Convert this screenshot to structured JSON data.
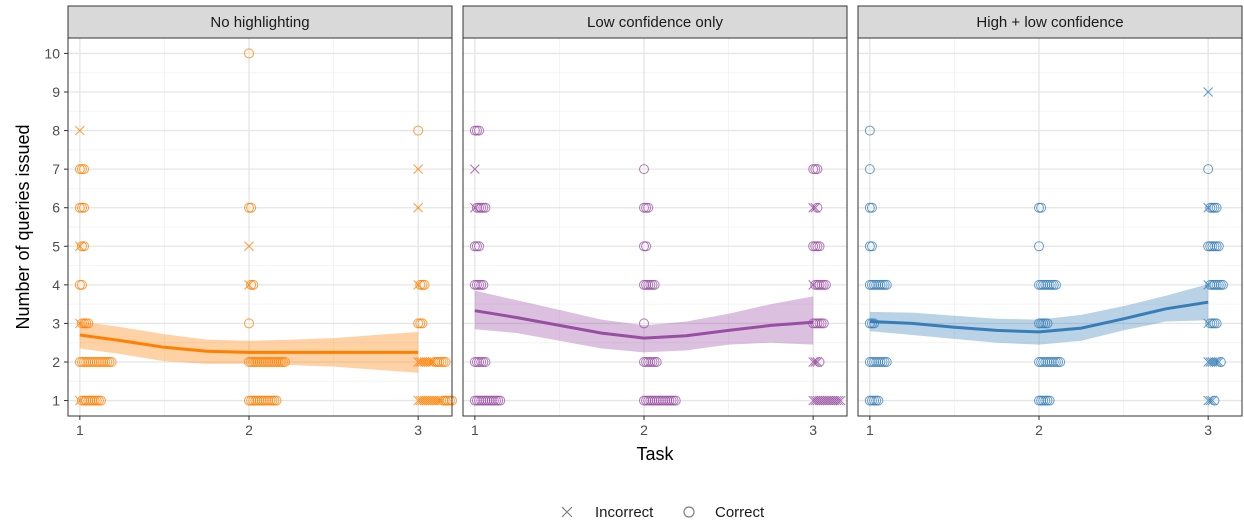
{
  "chart_data": {
    "type": "scatter",
    "xlabel": "Task",
    "ylabel": "Number of queries issued",
    "x_ticks": [
      1,
      2,
      3
    ],
    "y_ticks": [
      1,
      2,
      3,
      4,
      5,
      6,
      7,
      8,
      9,
      10
    ],
    "xlim": [
      0.93,
      3.2
    ],
    "ylim": [
      0.6,
      10.4
    ],
    "grid": true,
    "legend_placement": "bottom",
    "legend": [
      {
        "label": "Incorrect",
        "shape": "cross"
      },
      {
        "label": "Correct",
        "shape": "circle"
      }
    ],
    "panels": [
      {
        "title": "No highlighting",
        "color": "#ff7f00",
        "smooth": {
          "x": [
            1,
            1.25,
            1.5,
            1.75,
            2,
            2.25,
            2.5,
            2.75,
            3
          ],
          "y": [
            2.7,
            2.55,
            2.38,
            2.28,
            2.25,
            2.25,
            2.25,
            2.25,
            2.25
          ],
          "lower": [
            2.35,
            2.2,
            2.02,
            1.95,
            1.95,
            1.92,
            1.88,
            1.8,
            1.72
          ],
          "upper": [
            3.05,
            2.9,
            2.72,
            2.58,
            2.55,
            2.58,
            2.62,
            2.7,
            2.78
          ]
        },
        "groups": [
          {
            "task": 1,
            "y": 1,
            "correct": 10,
            "incorrect": 1
          },
          {
            "task": 1,
            "y": 2,
            "correct": 16,
            "incorrect": 0
          },
          {
            "task": 1,
            "y": 3,
            "correct": 4,
            "incorrect": 1
          },
          {
            "task": 1,
            "y": 4,
            "correct": 2,
            "incorrect": 0
          },
          {
            "task": 1,
            "y": 5,
            "correct": 2,
            "incorrect": 1
          },
          {
            "task": 1,
            "y": 6,
            "correct": 3,
            "incorrect": 0
          },
          {
            "task": 1,
            "y": 7,
            "correct": 3,
            "incorrect": 0
          },
          {
            "task": 1,
            "y": 8,
            "correct": 0,
            "incorrect": 1
          },
          {
            "task": 2,
            "y": 1,
            "correct": 14,
            "incorrect": 0
          },
          {
            "task": 2,
            "y": 2,
            "correct": 18,
            "incorrect": 0
          },
          {
            "task": 2,
            "y": 3,
            "correct": 1,
            "incorrect": 0
          },
          {
            "task": 2,
            "y": 4,
            "correct": 2,
            "incorrect": 1
          },
          {
            "task": 2,
            "y": 5,
            "correct": 0,
            "incorrect": 1
          },
          {
            "task": 2,
            "y": 6,
            "correct": 2,
            "incorrect": 0
          },
          {
            "task": 2,
            "y": 10,
            "correct": 1,
            "incorrect": 0
          },
          {
            "task": 3,
            "y": 1,
            "correct": 5,
            "incorrect": 12
          },
          {
            "task": 3,
            "y": 2,
            "correct": 6,
            "incorrect": 8
          },
          {
            "task": 3,
            "y": 3,
            "correct": 3,
            "incorrect": 0
          },
          {
            "task": 3,
            "y": 4,
            "correct": 3,
            "incorrect": 1
          },
          {
            "task": 3,
            "y": 6,
            "correct": 0,
            "incorrect": 1
          },
          {
            "task": 3,
            "y": 7,
            "correct": 0,
            "incorrect": 1
          },
          {
            "task": 3,
            "y": 8,
            "correct": 1,
            "incorrect": 0
          }
        ]
      },
      {
        "title": "Low confidence only",
        "color": "#984ea3",
        "smooth": {
          "x": [
            1,
            1.25,
            1.5,
            1.75,
            2,
            2.25,
            2.5,
            2.75,
            3
          ],
          "y": [
            3.33,
            3.15,
            2.95,
            2.75,
            2.62,
            2.68,
            2.82,
            2.95,
            3.03
          ],
          "lower": [
            2.85,
            2.75,
            2.55,
            2.35,
            2.25,
            2.3,
            2.45,
            2.5,
            2.45
          ],
          "upper": [
            3.85,
            3.6,
            3.35,
            3.1,
            2.95,
            3.05,
            3.25,
            3.5,
            3.7
          ]
        },
        "groups": [
          {
            "task": 1,
            "y": 1,
            "correct": 13,
            "incorrect": 0
          },
          {
            "task": 1,
            "y": 2,
            "correct": 6,
            "incorrect": 0
          },
          {
            "task": 1,
            "y": 3,
            "correct": 0,
            "incorrect": 0
          },
          {
            "task": 1,
            "y": 4,
            "correct": 5,
            "incorrect": 0
          },
          {
            "task": 1,
            "y": 5,
            "correct": 3,
            "incorrect": 0
          },
          {
            "task": 1,
            "y": 6,
            "correct": 5,
            "incorrect": 1
          },
          {
            "task": 1,
            "y": 7,
            "correct": 0,
            "incorrect": 1
          },
          {
            "task": 1,
            "y": 8,
            "correct": 3,
            "incorrect": 0
          },
          {
            "task": 2,
            "y": 1,
            "correct": 16,
            "incorrect": 0
          },
          {
            "task": 2,
            "y": 2,
            "correct": 7,
            "incorrect": 0
          },
          {
            "task": 2,
            "y": 3,
            "correct": 1,
            "incorrect": 0
          },
          {
            "task": 2,
            "y": 4,
            "correct": 6,
            "incorrect": 0
          },
          {
            "task": 2,
            "y": 5,
            "correct": 2,
            "incorrect": 0
          },
          {
            "task": 2,
            "y": 6,
            "correct": 3,
            "incorrect": 0
          },
          {
            "task": 2,
            "y": 7,
            "correct": 1,
            "incorrect": 0
          },
          {
            "task": 3,
            "y": 1,
            "correct": 0,
            "incorrect": 14
          },
          {
            "task": 3,
            "y": 2,
            "correct": 1,
            "incorrect": 3
          },
          {
            "task": 3,
            "y": 3,
            "correct": 6,
            "incorrect": 0
          },
          {
            "task": 3,
            "y": 4,
            "correct": 6,
            "incorrect": 1
          },
          {
            "task": 3,
            "y": 5,
            "correct": 4,
            "incorrect": 0
          },
          {
            "task": 3,
            "y": 6,
            "correct": 1,
            "incorrect": 2
          },
          {
            "task": 3,
            "y": 7,
            "correct": 3,
            "incorrect": 0
          }
        ]
      },
      {
        "title": "High + low confidence",
        "color": "#377eb8",
        "smooth": {
          "x": [
            1,
            1.25,
            1.5,
            1.75,
            2,
            2.25,
            2.5,
            2.75,
            3
          ],
          "y": [
            3.05,
            3.0,
            2.9,
            2.82,
            2.78,
            2.88,
            3.12,
            3.38,
            3.55
          ],
          "lower": [
            2.8,
            2.7,
            2.6,
            2.5,
            2.45,
            2.55,
            2.82,
            3.05,
            3.08
          ],
          "upper": [
            3.3,
            3.28,
            3.2,
            3.12,
            3.1,
            3.22,
            3.45,
            3.72,
            4.02
          ]
        },
        "groups": [
          {
            "task": 1,
            "y": 1,
            "correct": 5,
            "incorrect": 0
          },
          {
            "task": 1,
            "y": 2,
            "correct": 9,
            "incorrect": 0
          },
          {
            "task": 1,
            "y": 3,
            "correct": 3,
            "incorrect": 0
          },
          {
            "task": 1,
            "y": 4,
            "correct": 9,
            "incorrect": 0
          },
          {
            "task": 1,
            "y": 5,
            "correct": 2,
            "incorrect": 0
          },
          {
            "task": 1,
            "y": 6,
            "correct": 2,
            "incorrect": 0
          },
          {
            "task": 1,
            "y": 7,
            "correct": 1,
            "incorrect": 0
          },
          {
            "task": 1,
            "y": 8,
            "correct": 1,
            "incorrect": 0
          },
          {
            "task": 2,
            "y": 1,
            "correct": 6,
            "incorrect": 0
          },
          {
            "task": 2,
            "y": 2,
            "correct": 11,
            "incorrect": 0
          },
          {
            "task": 2,
            "y": 3,
            "correct": 5,
            "incorrect": 0
          },
          {
            "task": 2,
            "y": 4,
            "correct": 9,
            "incorrect": 0
          },
          {
            "task": 2,
            "y": 5,
            "correct": 1,
            "incorrect": 0
          },
          {
            "task": 2,
            "y": 6,
            "correct": 2,
            "incorrect": 0
          },
          {
            "task": 3,
            "y": 1,
            "correct": 1,
            "incorrect": 3
          },
          {
            "task": 3,
            "y": 2,
            "correct": 1,
            "incorrect": 6
          },
          {
            "task": 3,
            "y": 3,
            "correct": 4,
            "incorrect": 1
          },
          {
            "task": 3,
            "y": 4,
            "correct": 7,
            "incorrect": 1
          },
          {
            "task": 3,
            "y": 5,
            "correct": 6,
            "incorrect": 0
          },
          {
            "task": 3,
            "y": 6,
            "correct": 4,
            "incorrect": 1
          },
          {
            "task": 3,
            "y": 7,
            "correct": 1,
            "incorrect": 0
          },
          {
            "task": 3,
            "y": 9,
            "correct": 0,
            "incorrect": 1
          }
        ]
      }
    ]
  }
}
